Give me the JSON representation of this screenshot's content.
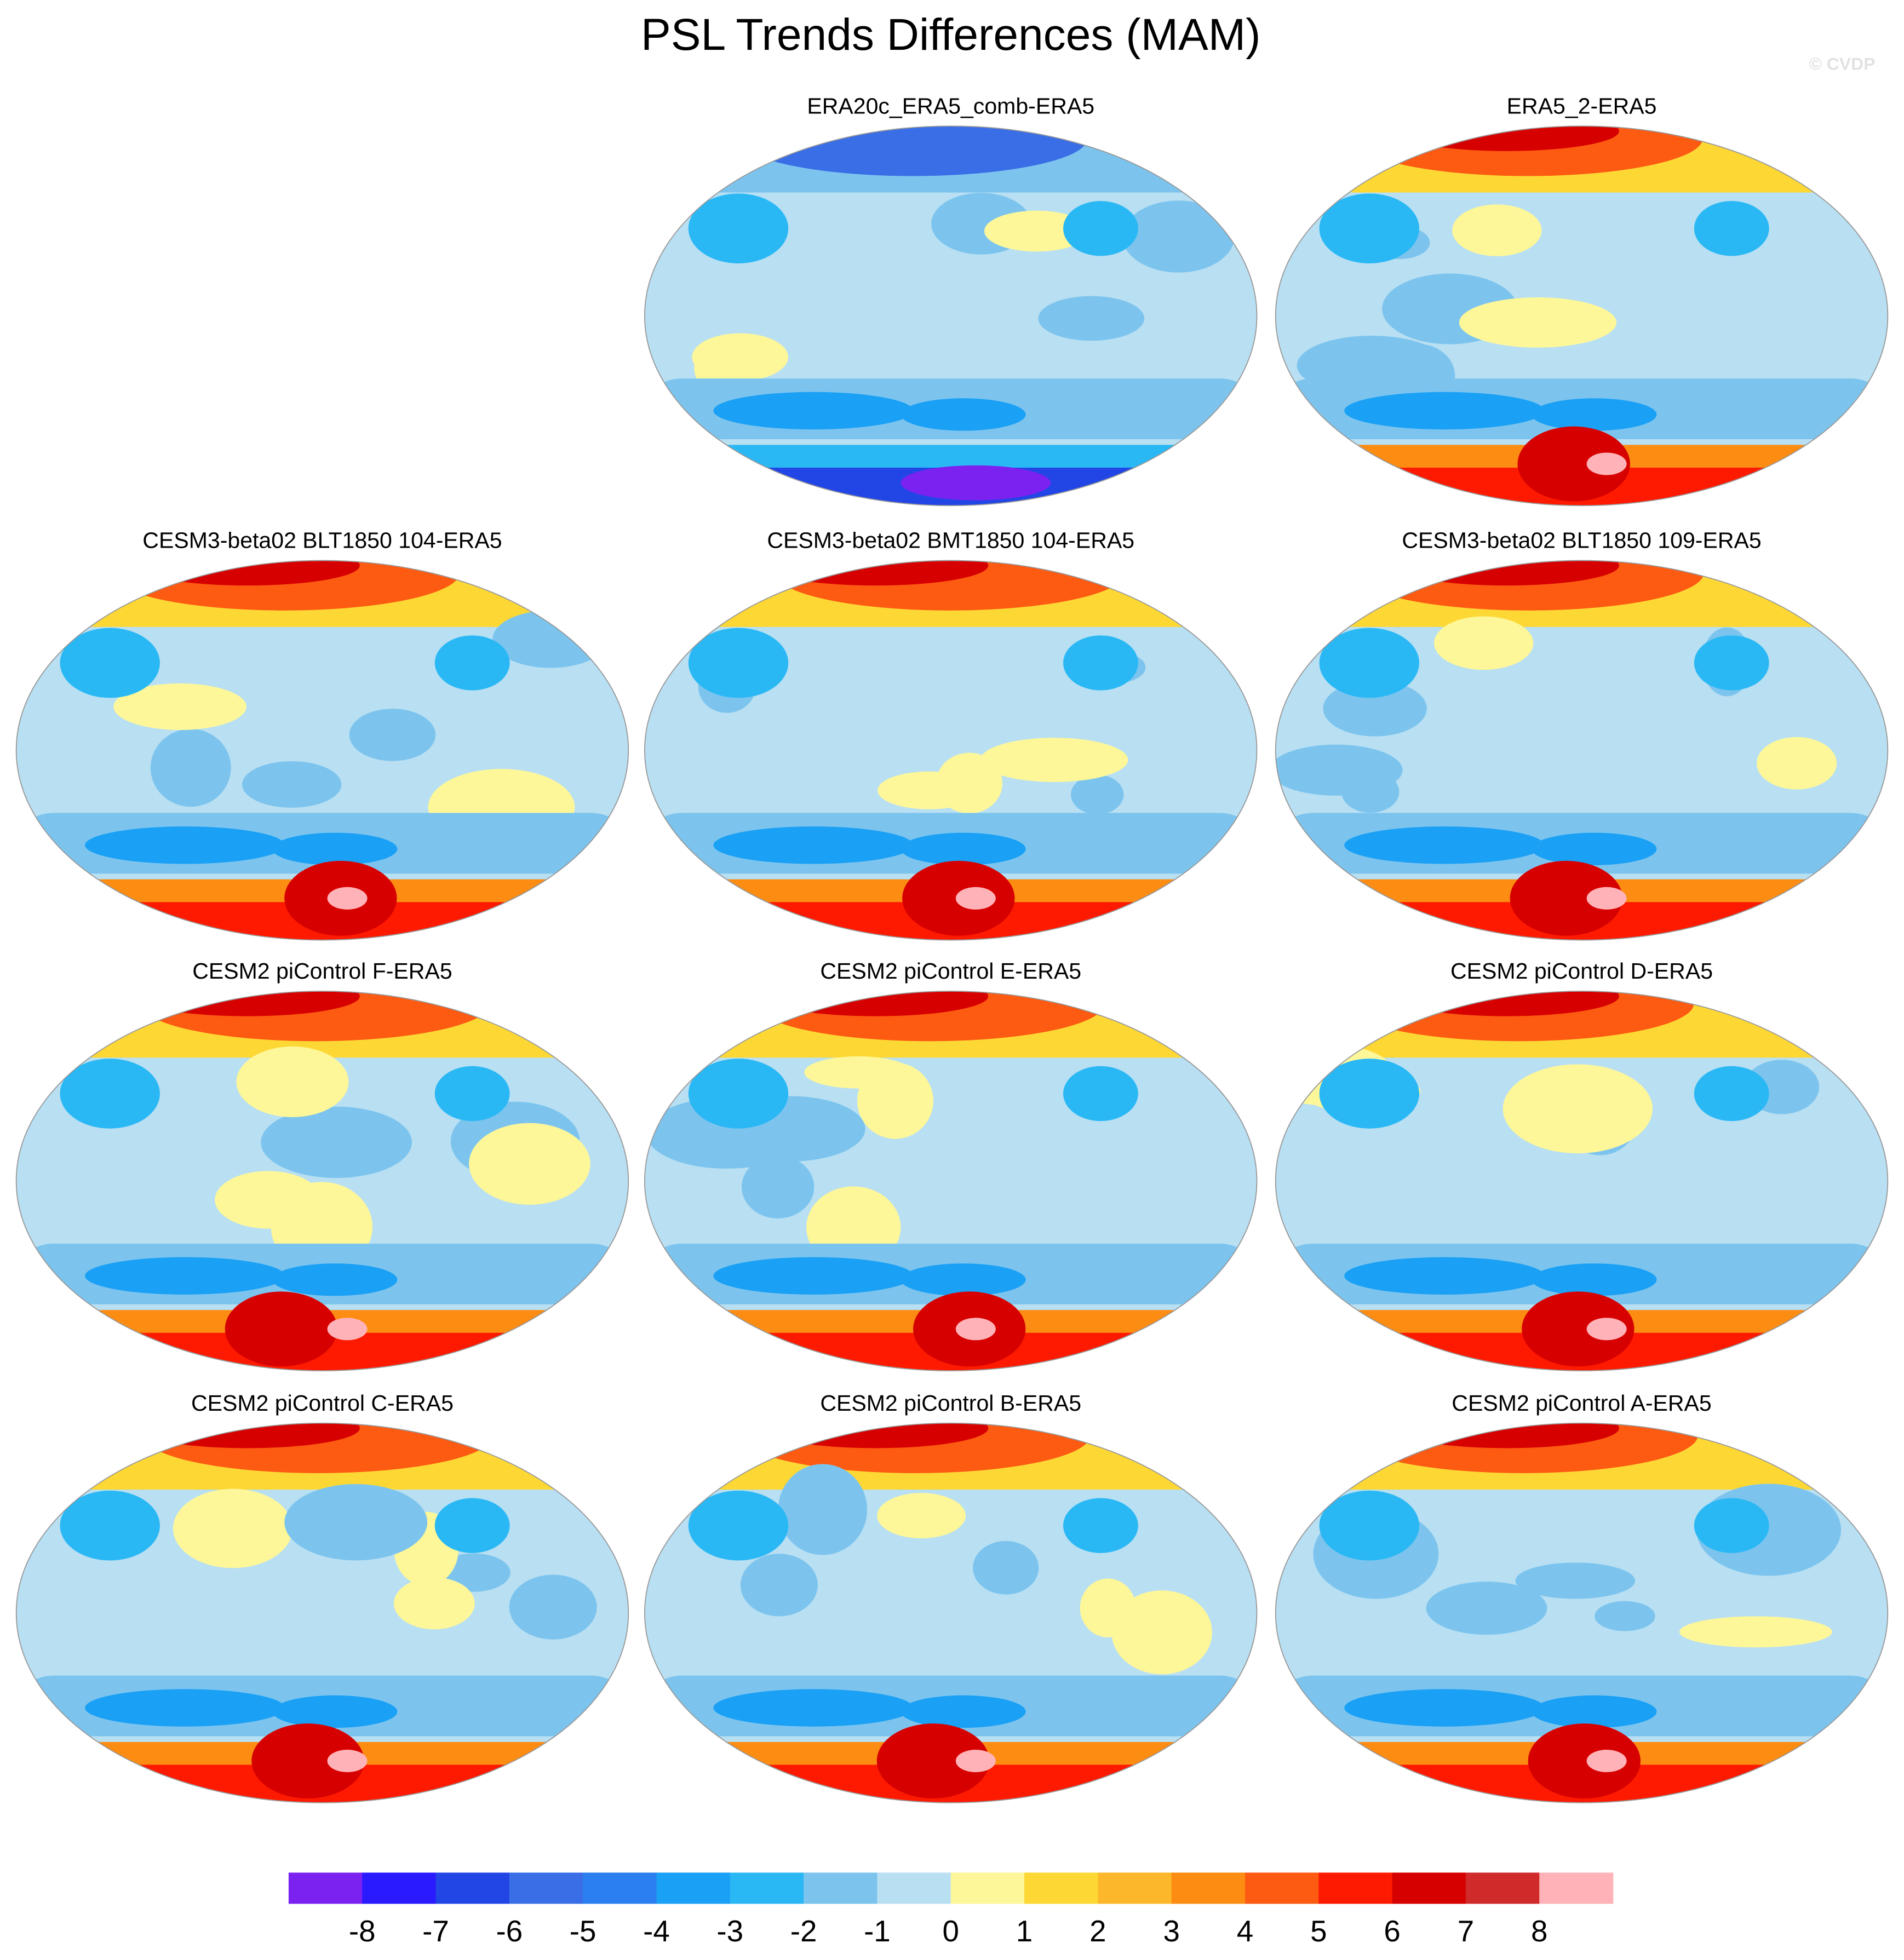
{
  "title": "PSL Trends Differences (MAM)",
  "watermark": "© CVDP",
  "panels": [
    {
      "title": "ERA20c_ERA5_comb-ERA5"
    },
    {
      "title": "ERA5_2-ERA5"
    },
    {
      "title": "CESM3-beta02 BLT1850 104-ERA5"
    },
    {
      "title": "CESM3-beta02 BMT1850 104-ERA5"
    },
    {
      "title": "CESM3-beta02 BLT1850 109-ERA5"
    },
    {
      "title": "CESM2 piControl F-ERA5"
    },
    {
      "title": "CESM2 piControl E-ERA5"
    },
    {
      "title": "CESM2 piControl D-ERA5"
    },
    {
      "title": "CESM2 piControl C-ERA5"
    },
    {
      "title": "CESM2 piControl B-ERA5"
    },
    {
      "title": "CESM2 piControl A-ERA5"
    }
  ],
  "colorbar": {
    "levels": [
      -8,
      -7,
      -6,
      -5,
      -4,
      -3,
      -2,
      -1,
      0,
      1,
      2,
      3,
      4,
      5,
      6,
      7,
      8
    ],
    "colors": [
      "#7b22f0",
      "#2a1aff",
      "#2246e6",
      "#3a6ee6",
      "#2b7ff0",
      "#1aa0f5",
      "#2ab8f5",
      "#7cc4ee",
      "#b8dff2",
      "#fdf79a",
      "#fdd835",
      "#fdb72a",
      "#fd8c12",
      "#fd5a12",
      "#fd1a00",
      "#d70000",
      "#d02a2a",
      "#ffb3b8"
    ]
  }
}
